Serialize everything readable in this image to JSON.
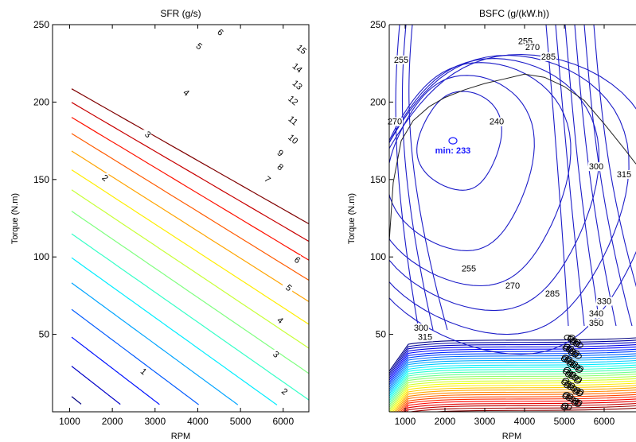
{
  "chart_data": [
    {
      "type": "contour",
      "title": "SFR (g/s)",
      "xlabel": "RPM",
      "ylabel": "Torque (N.m)",
      "xlim": [
        600,
        6600
      ],
      "ylim": [
        0,
        250
      ],
      "xticks": [
        1000,
        2000,
        3000,
        4000,
        5000,
        6000
      ],
      "yticks": [
        50,
        100,
        150,
        200,
        250
      ],
      "colormap": "jet",
      "levels": [
        1,
        2,
        3,
        4,
        5,
        6,
        7,
        8,
        9,
        10,
        11,
        12,
        13,
        14,
        15
      ],
      "level_labels": [
        "1",
        "2",
        "3",
        "4",
        "5",
        "6",
        "7",
        "8",
        "9",
        "10",
        "11",
        "12",
        "13",
        "14",
        "15"
      ],
      "label_points": [
        {
          "text": "1",
          "x": 2700,
          "y": 25
        },
        {
          "text": "2",
          "x": 1800,
          "y": 150
        },
        {
          "text": "2",
          "x": 6000,
          "y": 12
        },
        {
          "text": "3",
          "x": 2800,
          "y": 178
        },
        {
          "text": "3",
          "x": 5800,
          "y": 36
        },
        {
          "text": "4",
          "x": 3700,
          "y": 205
        },
        {
          "text": "4",
          "x": 5900,
          "y": 58
        },
        {
          "text": "5",
          "x": 4000,
          "y": 235
        },
        {
          "text": "5",
          "x": 6100,
          "y": 79
        },
        {
          "text": "6",
          "x": 4500,
          "y": 244
        },
        {
          "text": "6",
          "x": 6300,
          "y": 97
        },
        {
          "text": "7",
          "x": 5600,
          "y": 149
        },
        {
          "text": "8",
          "x": 5900,
          "y": 157
        },
        {
          "text": "9",
          "x": 5900,
          "y": 166
        },
        {
          "text": "10",
          "x": 6200,
          "y": 175
        },
        {
          "text": "11",
          "x": 6200,
          "y": 187
        },
        {
          "text": "12",
          "x": 6200,
          "y": 200
        },
        {
          "text": "13",
          "x": 6300,
          "y": 210
        },
        {
          "text": "14",
          "x": 6300,
          "y": 221
        },
        {
          "text": "15",
          "x": 6400,
          "y": 233
        }
      ]
    },
    {
      "type": "contour",
      "title": "BSFC (g/(kW.h))",
      "xlabel": "RPM",
      "ylabel": "Torque (N.m)",
      "xlim": [
        600,
        6800
      ],
      "ylim": [
        0,
        250
      ],
      "xticks": [
        1000,
        2000,
        3000,
        4000,
        5000,
        6000
      ],
      "yticks": [
        50,
        100,
        150,
        200,
        250
      ],
      "colormap": "jet",
      "level_labels": [
        "240",
        "255",
        "255",
        "255",
        "270",
        "270",
        "285",
        "285",
        "285",
        "300",
        "300",
        "315",
        "315",
        "330",
        "340",
        "350"
      ],
      "label_points": [
        {
          "text": "255",
          "x": 900,
          "y": 226
        },
        {
          "text": "270",
          "x": 740,
          "y": 186
        },
        {
          "text": "255",
          "x": 4020,
          "y": 238
        },
        {
          "text": "270",
          "x": 4200,
          "y": 234
        },
        {
          "text": "285",
          "x": 4600,
          "y": 228
        },
        {
          "text": "240",
          "x": 3300,
          "y": 186
        },
        {
          "text": "300",
          "x": 5800,
          "y": 157
        },
        {
          "text": "315",
          "x": 6500,
          "y": 152
        },
        {
          "text": "255",
          "x": 2600,
          "y": 91
        },
        {
          "text": "270",
          "x": 3700,
          "y": 80
        },
        {
          "text": "285",
          "x": 4700,
          "y": 75
        },
        {
          "text": "300",
          "x": 1400,
          "y": 53
        },
        {
          "text": "315",
          "x": 1500,
          "y": 47
        },
        {
          "text": "330",
          "x": 6000,
          "y": 70
        },
        {
          "text": "340",
          "x": 5800,
          "y": 62
        },
        {
          "text": "350",
          "x": 5800,
          "y": 56
        }
      ],
      "max_torque_curve": {
        "rpm": [
          600,
          700,
          900,
          1200,
          1600,
          2000,
          2500,
          3000,
          3500,
          4000,
          4500,
          5000,
          5500,
          6000,
          6500,
          6800
        ],
        "torque": [
          110,
          148,
          175,
          188,
          197,
          203,
          208,
          212,
          215,
          218,
          216,
          210,
          201,
          186,
          170,
          160
        ]
      },
      "minimum": {
        "label": "min: 233",
        "rpm": 2200,
        "torque": 175
      }
    }
  ]
}
